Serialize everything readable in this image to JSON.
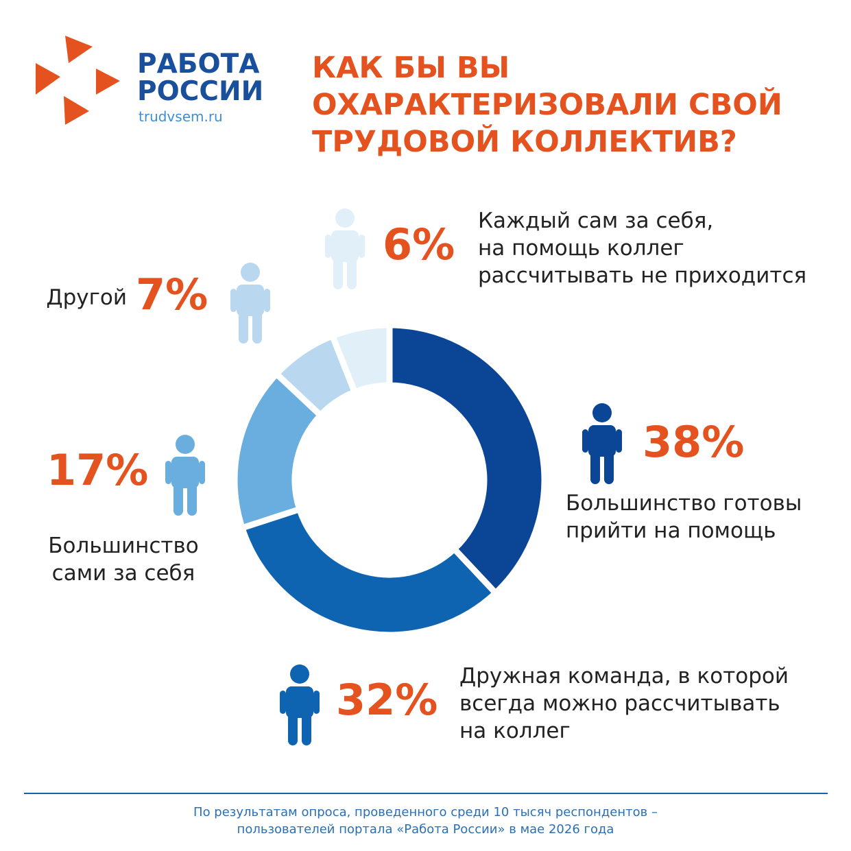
{
  "logo": {
    "name": "РАБОТА\nРОССИИ",
    "site": "trudvsem.ru"
  },
  "chart_data": {
    "type": "donut",
    "title": "КАК БЫ ВЫ\nОХАРАКТЕРИЗОВАЛИ СВОЙ\nТРУДОВОЙ КОЛЛЕКТИВ?",
    "categories": [
      "Большинство готовы\nприйти на помощь",
      "Дружная команда, в которой\nвсегда можно рассчитывать\nна коллег",
      "Большинство\nсами за себя",
      "Другой",
      "Каждый сам за себя,\nна помощь коллег\nрассчитывать не приходится"
    ],
    "values": [
      38,
      32,
      17,
      7,
      6
    ],
    "value_labels": [
      "38%",
      "32%",
      "17%",
      "7%",
      "6%"
    ],
    "colors": [
      "#0b4595",
      "#0e64b0",
      "#6aaee0",
      "#b9d8f0",
      "#e1eff9"
    ],
    "label_color": "#e4531f"
  },
  "footer": "По результатам опроса, проведенного среди 10 тысяч респондентов –\nпользователей портала «Работа России» в мае 2026 года"
}
